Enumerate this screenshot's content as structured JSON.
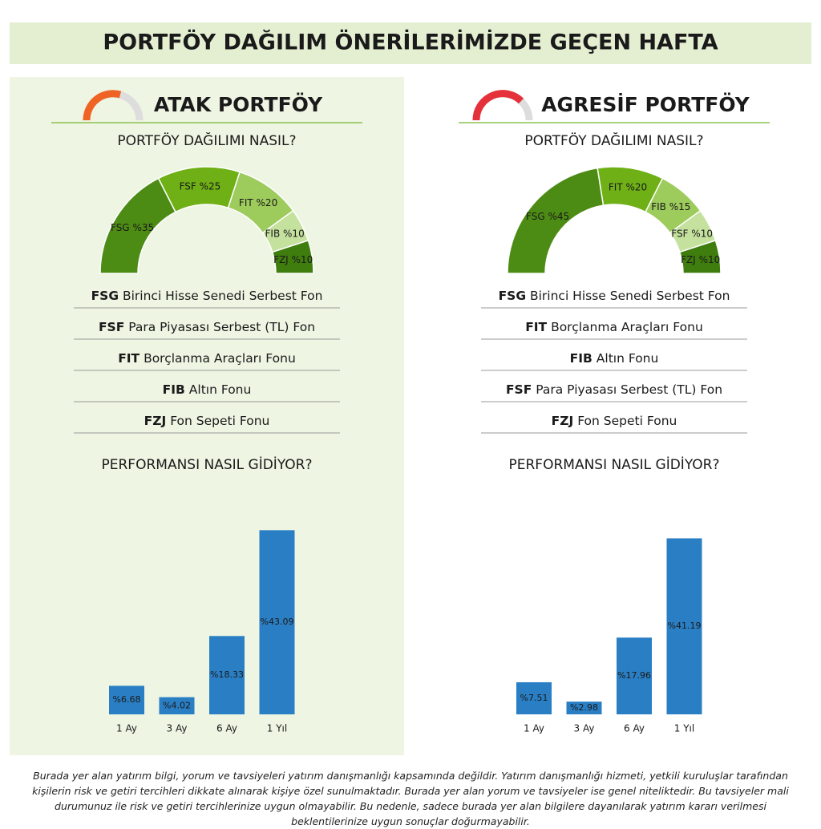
{
  "title": "PORTFÖY DAĞILIM ÖNERİLERİMİZDE GEÇEN HAFTA",
  "panels": [
    {
      "name": "ATAK PORTFÖY",
      "question": "PORTFÖY DAĞILIMI NASIL?",
      "funds": [
        {
          "code": "FSG",
          "name": "Birinci Hisse Senedi Serbest Fon"
        },
        {
          "code": "FSF",
          "name": "Para Piyasası Serbest (TL) Fon"
        },
        {
          "code": "FIT",
          "name": "Borçlanma Araçları Fonu"
        },
        {
          "code": "FIB",
          "name": "Altın Fonu"
        },
        {
          "code": "FZJ",
          "name": "Fon Sepeti Fonu"
        }
      ],
      "performance_title": "PERFORMANSI NASIL GİDİYOR?"
    },
    {
      "name": "AGRESİF PORTFÖY",
      "question": "PORTFÖY DAĞILIMI NASIL?",
      "funds": [
        {
          "code": "FSG",
          "name": "Birinci Hisse Senedi Serbest Fon"
        },
        {
          "code": "FIT",
          "name": "Borçlanma Araçları Fonu"
        },
        {
          "code": "FIB",
          "name": "Altın Fonu"
        },
        {
          "code": "FSF",
          "name": "Para Piyasası Serbest (TL) Fon"
        },
        {
          "code": "FZJ",
          "name": "Fon Sepeti Fonu"
        }
      ],
      "performance_title": "PERFORMANSI NASIL GİDİYOR?"
    }
  ],
  "chart_data": [
    {
      "type": "pie",
      "categories": [
        "FSG",
        "FSF",
        "FIT",
        "FIB",
        "FZJ"
      ],
      "values": [
        35,
        25,
        20,
        10,
        10
      ],
      "value_labels": [
        "%35",
        "%25",
        "%20",
        "%10",
        "%10"
      ],
      "colors": [
        "#4d8c14",
        "#6fb016",
        "#9dcb5c",
        "#c5e19e",
        "#3f7e0e"
      ]
    },
    {
      "type": "bar",
      "categories": [
        "1 Ay",
        "3 Ay",
        "6 Ay",
        "1 Yıl"
      ],
      "values": [
        6.68,
        4.02,
        18.33,
        43.09
      ],
      "value_labels": [
        "%6.68",
        "%4.02",
        "%18.33",
        "%43.09"
      ],
      "color": "#2a7ec4"
    },
    {
      "type": "pie",
      "categories": [
        "FSG",
        "FIT",
        "FIB",
        "FSF",
        "FZJ"
      ],
      "values": [
        45,
        20,
        15,
        10,
        10
      ],
      "value_labels": [
        "%45",
        "%20",
        "%15",
        "%10",
        "%10"
      ],
      "colors": [
        "#4d8c14",
        "#6fb016",
        "#9dcb5c",
        "#c5e19e",
        "#3f7e0e"
      ]
    },
    {
      "type": "bar",
      "categories": [
        "1 Ay",
        "3 Ay",
        "6 Ay",
        "1 Yıl"
      ],
      "values": [
        7.51,
        2.98,
        17.96,
        41.19
      ],
      "value_labels": [
        "%7.51",
        "%2.98",
        "%17.96",
        "%41.19"
      ],
      "color": "#2a7ec4"
    }
  ],
  "disclaimer": "Burada yer alan yatırım bilgi, yorum ve tavsiyeleri yatırım danışmanlığı kapsamında değildir. Yatırım danışmanlığı hizmeti, yetkili kuruluşlar tarafından kişilerin risk ve getiri tercihleri dikkate alınarak kişiye özel sunulmaktadır. Burada yer alan yorum ve tavsiyeler ise genel niteliktedir. Bu tavsiyeler mali durumunuz ile risk ve getiri tercihlerinize uygun olmayabilir. Bu nedenle, sadece burada yer alan bilgilere dayanılarak yatırım kararı verilmesi beklentilerinize uygun sonuçlar doğurmayabilir."
}
